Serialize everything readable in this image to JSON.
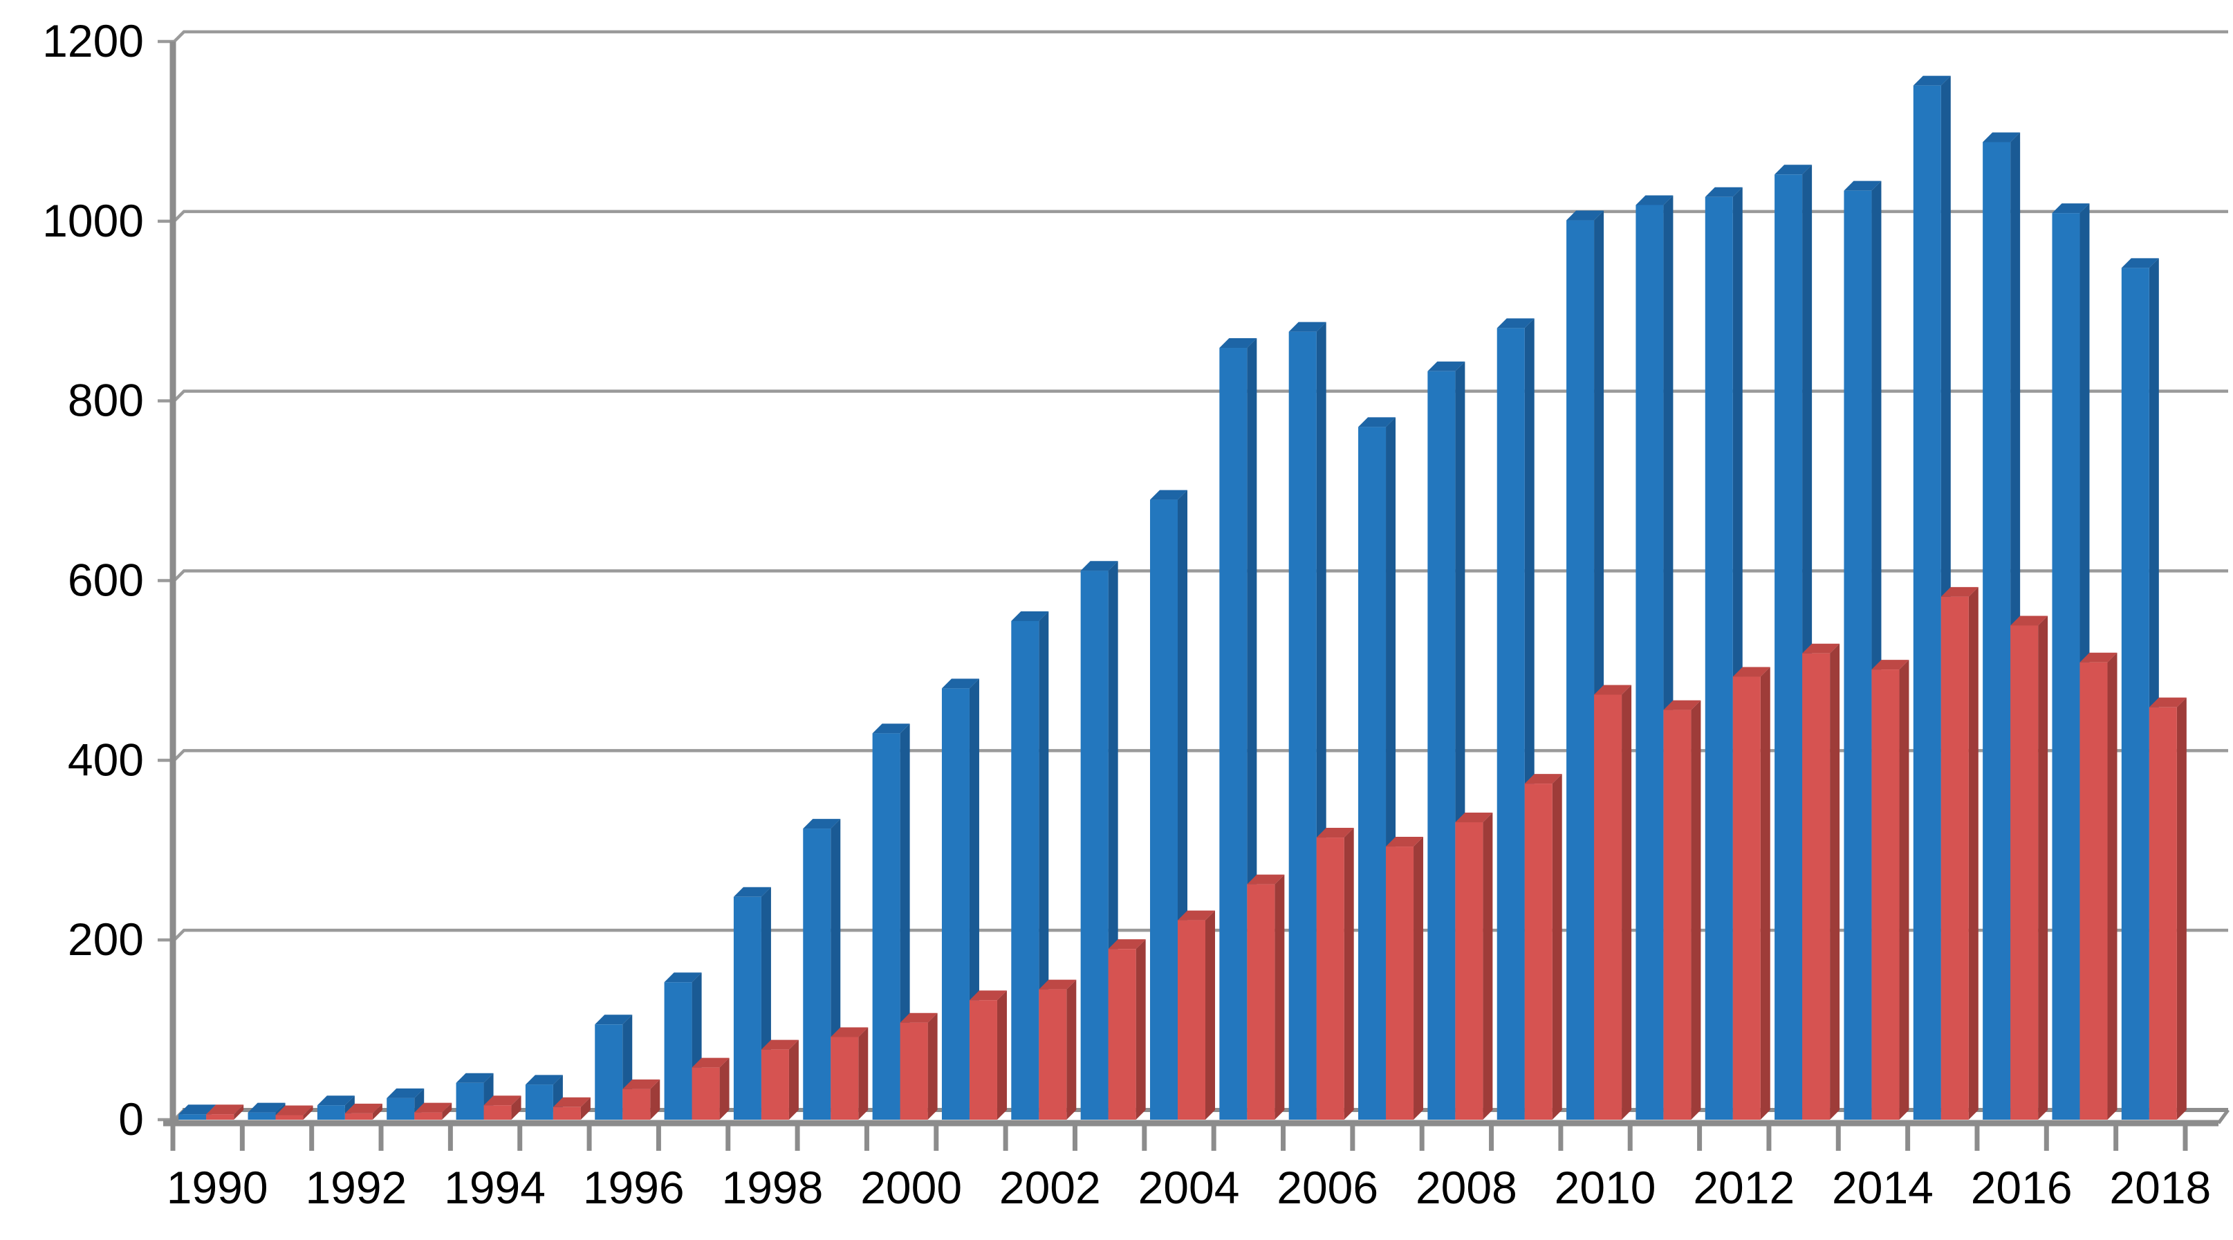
{
  "chart_data": {
    "type": "bar",
    "style": "3d-beveled-clustered-columns",
    "title": "",
    "xlabel": "",
    "ylabel": "",
    "legend_position": "none",
    "grid": true,
    "background_color": "#ffffff",
    "gridline_color": "#9a9a9a",
    "axis_color": "#8c8c8c",
    "label_color": "#000000",
    "ylim": [
      0,
      1200
    ],
    "y_ticks": [
      0,
      200,
      400,
      600,
      800,
      1000,
      1200
    ],
    "x_tick_labels": [
      "1990",
      "1992",
      "1994",
      "1996",
      "1998",
      "2000",
      "2002",
      "2004",
      "2006",
      "2008",
      "2010",
      "2012",
      "2014",
      "2016",
      "2018"
    ],
    "categories": [
      1990,
      1991,
      1992,
      1993,
      1994,
      1995,
      1996,
      1997,
      1998,
      1999,
      2000,
      2001,
      2002,
      2003,
      2004,
      2005,
      2006,
      2007,
      2008,
      2009,
      2010,
      2011,
      2012,
      2013,
      2014,
      2015,
      2016,
      2017,
      2018
    ],
    "series": [
      {
        "name": "blue",
        "color": "#2377be",
        "side_color": "#1a5a94",
        "top_color": "#1d65a6",
        "values": [
          6,
          8,
          16,
          24,
          41,
          39,
          106,
          153,
          248,
          324,
          430,
          480,
          555,
          611,
          690,
          859,
          877,
          771,
          833,
          881,
          1001,
          1018,
          1027,
          1052,
          1034,
          1151,
          1088,
          1009,
          948
        ]
      },
      {
        "name": "red",
        "color": "#d65351",
        "side_color": "#9e3c39",
        "top_color": "#be4845",
        "values": [
          6,
          5,
          7,
          8,
          16,
          14,
          34,
          58,
          78,
          92,
          108,
          133,
          145,
          190,
          222,
          262,
          314,
          304,
          331,
          374,
          473,
          456,
          493,
          519,
          501,
          582,
          550,
          509,
          459
        ]
      }
    ]
  }
}
